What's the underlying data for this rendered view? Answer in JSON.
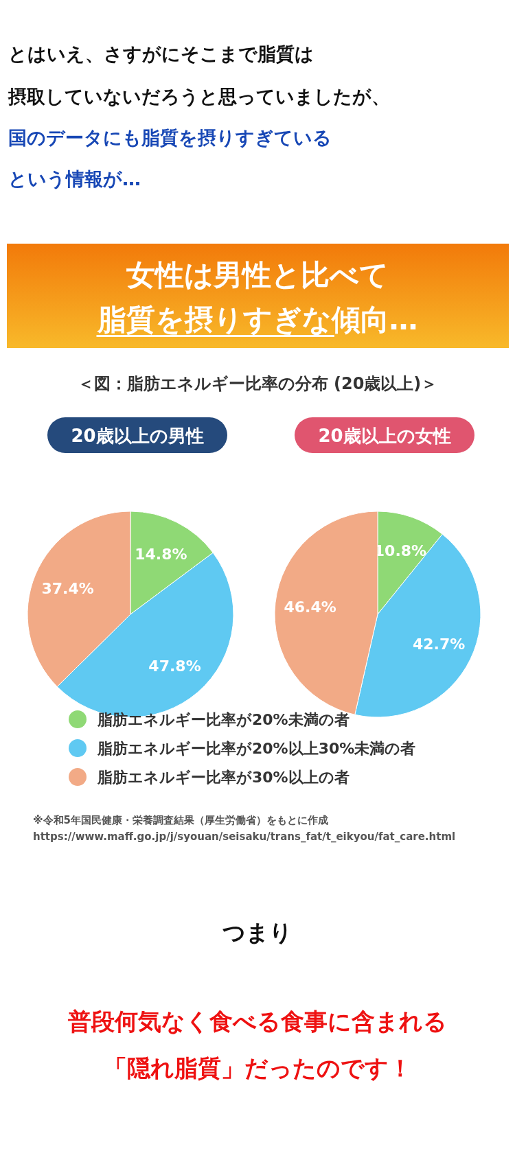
{
  "chart_data": [
    {
      "type": "pie",
      "title": "20歳以上の男性",
      "subtitle": "＜図：脂肪エネルギー比率の分布 (20歳以上)＞",
      "categories": [
        "脂肪エネルギー比率が20%未満の者",
        "脂肪エネルギー比率が20%以上30%未満の者",
        "脂肪エネルギー比率が30%以上の者"
      ],
      "values": [
        14.8,
        47.8,
        37.4
      ],
      "value_labels": [
        "14.8%",
        "47.8%",
        "37.4%"
      ],
      "colors": [
        "#8fd975",
        "#5fc9f2",
        "#f2aa86"
      ],
      "legend": "bottom",
      "annotations": [
        "とはいえ、さすがにそこまで脂質は",
        "摂取していないだろうと思っていましたが、",
        "国のデータにも脂質を摂りすぎている",
        "という情報が…",
        "女性は男性と比べて",
        "脂質を摂りすぎな傾向…",
        "※令和5年国民健康・栄養調査結果（厚生労働省）をもとに作成",
        "https://www.maff.go.jp/j/syouan/seisaku/trans_fat/t_eikyou/fat_care.html",
        "つまり",
        "普段何気なく食べる食事に含まれる",
        "「隠れ脂質」だったのです！"
      ]
    },
    {
      "type": "pie",
      "title": "20歳以上の女性",
      "categories": [
        null,
        null,
        null
      ],
      "values": [
        10.8,
        42.7,
        46.4
      ],
      "value_labels": [
        "10.8%",
        "42.7%",
        "46.4%"
      ],
      "colors": [
        "#8fd975",
        "#5fc9f2",
        "#f2aa86"
      ]
    }
  ]
}
